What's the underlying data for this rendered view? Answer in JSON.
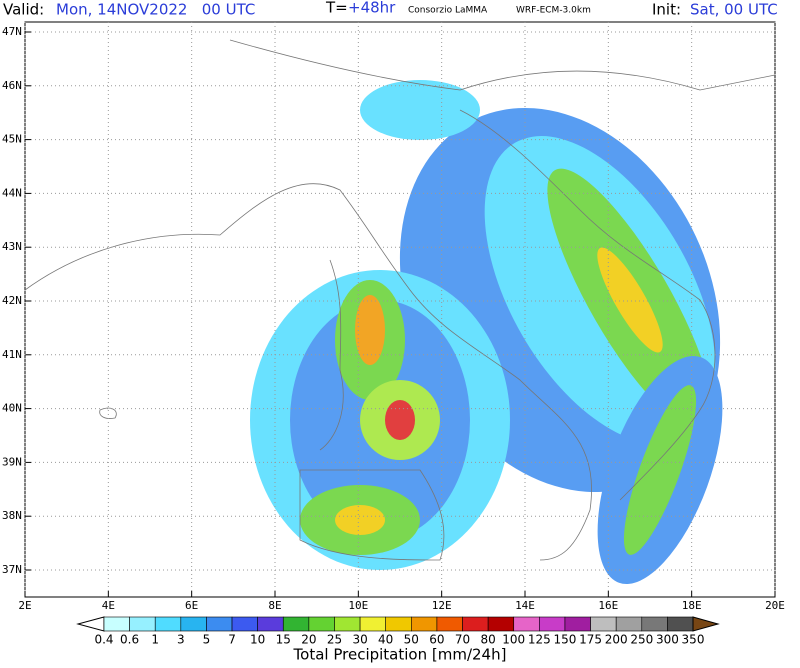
{
  "header": {
    "valid_label": "Valid:",
    "valid_time": "Mon, 14NOV2022   00 UTC",
    "step_label": "T=",
    "step": "+48hr",
    "producer": "Consorzio LaMMA",
    "model": "WRF-ECM-3.0km",
    "init_label": "Init:",
    "init_time": "Sat, 00 UTC"
  },
  "map": {
    "lat_labels": [
      "47N",
      "46N",
      "45N",
      "44N",
      "43N",
      "42N",
      "41N",
      "40N",
      "39N",
      "38N",
      "37N"
    ],
    "lon_labels": [
      "2E",
      "4E",
      "6E",
      "8E",
      "10E",
      "12E",
      "14E",
      "16E",
      "18E",
      "20E"
    ]
  },
  "colorbar": {
    "title": "Total Precipitation [mm/24h]",
    "labels": [
      "0.4",
      "0.6",
      "1",
      "3",
      "5",
      "7",
      "10",
      "15",
      "20",
      "25",
      "30",
      "40",
      "50",
      "60",
      "70",
      "80",
      "100",
      "125",
      "150",
      "175",
      "200",
      "250",
      "300",
      "350"
    ],
    "colors": [
      "#ffffff",
      "#c8ffff",
      "#96f0ff",
      "#50dcff",
      "#28b4f0",
      "#3c8cf0",
      "#3c5af0",
      "#5a3cdc",
      "#32b432",
      "#64d232",
      "#a0e632",
      "#f0f032",
      "#f0c800",
      "#f09600",
      "#f05a00",
      "#dc1e1e",
      "#b40000",
      "#e664c8",
      "#c83cc8",
      "#a01ea0",
      "#bebebe",
      "#a0a0a0",
      "#787878",
      "#505050",
      "#a07830",
      "#8c5a1e",
      "#784614"
    ]
  }
}
